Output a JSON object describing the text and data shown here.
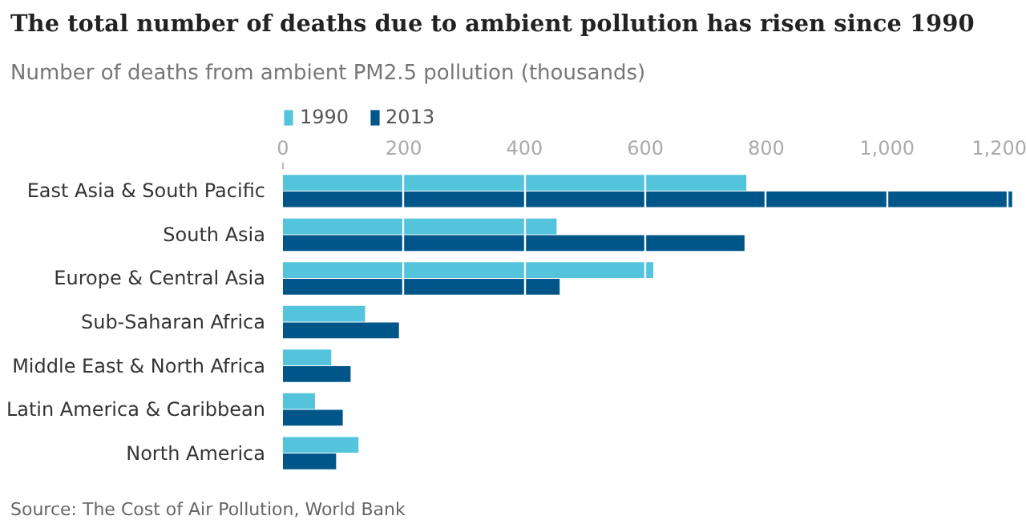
{
  "chart_data": {
    "type": "bar",
    "orientation": "horizontal",
    "title": "The total number of deaths due to ambient pollution has risen since 1990",
    "subtitle": "Number of deaths from ambient PM2.5 pollution (thousands)",
    "categories": [
      "East Asia & South Pacific",
      "South Asia",
      "Europe & Central Asia",
      "Sub-Saharan Africa",
      "Middle East & North Africa",
      "Latin America & Caribbean",
      "North America"
    ],
    "series": [
      {
        "name": "1990",
        "color": "#54c4dc",
        "values": [
          767,
          453,
          613,
          136,
          80,
          53,
          125
        ]
      },
      {
        "name": "2013",
        "color": "#005689",
        "values": [
          1207,
          764,
          458,
          192,
          112,
          99,
          88
        ]
      }
    ],
    "xlim": [
      0,
      1210
    ],
    "xticks": [
      0,
      200,
      400,
      600,
      800,
      {
        "value": 1000,
        "label": "1,000"
      },
      {
        "value": 1200,
        "label": "1,200"
      }
    ],
    "grid": "x",
    "legend": "top left",
    "annotations": [
      "Source: The Cost of Air Pollution, World Bank"
    ]
  }
}
